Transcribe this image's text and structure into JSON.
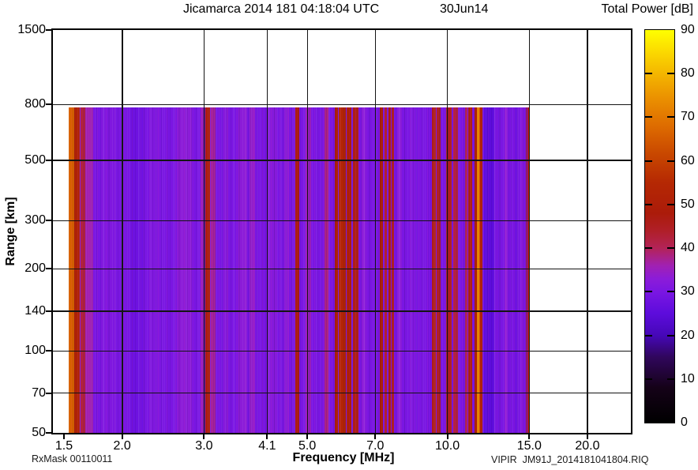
{
  "header": {
    "title_main": "Jicamarca 2014 181 04:18:04 UTC",
    "title_date": "30Jun14",
    "colorbar_title": "Total Power [dB]"
  },
  "footer": {
    "rx_mask": "RxMask 00110011",
    "file_id": "VIPIR  JM91J_2014181041804.RIQ"
  },
  "chart_data": {
    "type": "heatmap",
    "title": "Jicamarca 2014 181 04:18:04 UTC  30Jun14",
    "xlabel": "Frequency [MHz]",
    "ylabel": "Range [km]",
    "x_scale": "log",
    "y_scale": "log",
    "xlim": [
      1.42,
      24.8
    ],
    "ylim": [
      50,
      1500
    ],
    "x_ticks": [
      1.5,
      2.0,
      3.0,
      4.1,
      5.0,
      7.0,
      10.0,
      15.0,
      20.0
    ],
    "x_tick_labels": [
      "1.5",
      "2.0",
      "3.0",
      "4.1",
      "5.0",
      "7.0",
      "10.0",
      "15.0",
      "20.0"
    ],
    "y_ticks": [
      50,
      70,
      100,
      140,
      200,
      300,
      500,
      800,
      1500
    ],
    "y_tick_labels": [
      "50",
      "70",
      "100",
      "140",
      "200",
      "300",
      "500",
      "800",
      "1500"
    ],
    "grid": {
      "on": true,
      "x_lines": [
        2.0,
        3.0,
        4.1,
        5.0,
        7.0,
        10.0,
        15.0,
        20.0
      ],
      "y_lines": [
        70,
        100,
        140,
        200,
        300,
        500,
        800
      ]
    },
    "data_extent": {
      "f_min": 1.535,
      "f_max": 15.0,
      "range_min_km": 50,
      "range_max_km": 780
    },
    "background_db": 30,
    "colorbar": {
      "title": "Total Power [dB]",
      "min": 0,
      "max": 90,
      "ticks": [
        0,
        10,
        20,
        30,
        40,
        50,
        60,
        70,
        80,
        90
      ],
      "tick_labels": [
        "0",
        "10",
        "20",
        "30",
        "40",
        "50",
        "60",
        "70",
        "80",
        "90"
      ],
      "stops": [
        {
          "db": 0,
          "color": "#000000"
        },
        {
          "db": 8,
          "color": "#150218"
        },
        {
          "db": 15,
          "color": "#30065c"
        },
        {
          "db": 20,
          "color": "#4607b8"
        },
        {
          "db": 25,
          "color": "#5d0cdc"
        },
        {
          "db": 30,
          "color": "#7a16e2"
        },
        {
          "db": 33,
          "color": "#8c1cd8"
        },
        {
          "db": 36,
          "color": "#a121b2"
        },
        {
          "db": 40,
          "color": "#b32358"
        },
        {
          "db": 44,
          "color": "#b01f28"
        },
        {
          "db": 48,
          "color": "#ab1b0a"
        },
        {
          "db": 55,
          "color": "#b52803"
        },
        {
          "db": 62,
          "color": "#ca4a00"
        },
        {
          "db": 68,
          "color": "#de6c00"
        },
        {
          "db": 74,
          "color": "#ea8e00"
        },
        {
          "db": 80,
          "color": "#f4b600"
        },
        {
          "db": 85,
          "color": "#fbd900"
        },
        {
          "db": 90,
          "color": "#ffff00"
        }
      ]
    },
    "rfi_stripes": [
      {
        "f1": 1.535,
        "f2": 1.575,
        "db": 66
      },
      {
        "f1": 1.575,
        "f2": 1.625,
        "db": 51
      },
      {
        "f1": 1.625,
        "f2": 1.67,
        "db": 42
      },
      {
        "f1": 1.67,
        "f2": 1.735,
        "db": 36
      },
      {
        "f1": 1.8,
        "f2": 1.92,
        "db": 31
      },
      {
        "f1": 2.08,
        "f2": 2.22,
        "db": 28
      },
      {
        "f1": 2.3,
        "f2": 2.42,
        "db": 31
      },
      {
        "f1": 2.62,
        "f2": 2.82,
        "db": 33
      },
      {
        "f1": 2.95,
        "f2": 3.01,
        "db": 35
      },
      {
        "f1": 3.02,
        "f2": 3.09,
        "db": 47
      },
      {
        "f1": 3.1,
        "f2": 3.17,
        "db": 37
      },
      {
        "f1": 3.3,
        "f2": 3.38,
        "db": 32
      },
      {
        "f1": 3.55,
        "f2": 3.72,
        "db": 33
      },
      {
        "f1": 3.76,
        "f2": 3.86,
        "db": 34
      },
      {
        "f1": 4.1,
        "f2": 4.3,
        "db": 32
      },
      {
        "f1": 4.46,
        "f2": 4.56,
        "db": 33
      },
      {
        "f1": 4.72,
        "f2": 4.81,
        "db": 47
      },
      {
        "f1": 4.95,
        "f2": 5.1,
        "db": 35
      },
      {
        "f1": 5.45,
        "f2": 5.56,
        "db": 38
      },
      {
        "f1": 5.72,
        "f2": 5.83,
        "db": 50
      },
      {
        "f1": 5.85,
        "f2": 6.06,
        "db": 53
      },
      {
        "f1": 6.08,
        "f2": 6.21,
        "db": 49
      },
      {
        "f1": 6.28,
        "f2": 6.43,
        "db": 46
      },
      {
        "f1": 6.55,
        "f2": 6.66,
        "db": 33
      },
      {
        "f1": 7.15,
        "f2": 7.28,
        "db": 48
      },
      {
        "f1": 7.33,
        "f2": 7.41,
        "db": 43
      },
      {
        "f1": 7.47,
        "f2": 7.56,
        "db": 48
      },
      {
        "f1": 7.6,
        "f2": 7.69,
        "db": 45
      },
      {
        "f1": 7.8,
        "f2": 7.96,
        "db": 33
      },
      {
        "f1": 8.3,
        "f2": 8.52,
        "db": 31
      },
      {
        "f1": 9.28,
        "f2": 9.43,
        "db": 46
      },
      {
        "f1": 9.5,
        "f2": 9.69,
        "db": 44
      },
      {
        "f1": 9.95,
        "f2": 10.2,
        "db": 45
      },
      {
        "f1": 10.3,
        "f2": 10.56,
        "db": 42
      },
      {
        "f1": 10.9,
        "f2": 11.06,
        "db": 40
      },
      {
        "f1": 11.1,
        "f2": 11.3,
        "db": 48
      },
      {
        "f1": 11.44,
        "f2": 11.56,
        "db": 52
      },
      {
        "f1": 11.56,
        "f2": 11.78,
        "db": 66
      },
      {
        "f1": 11.6,
        "f2": 11.67,
        "db": 78
      },
      {
        "f1": 11.78,
        "f2": 11.89,
        "db": 50
      },
      {
        "f1": 12.0,
        "f2": 12.62,
        "db": 25
      },
      {
        "f1": 12.7,
        "f2": 12.92,
        "db": 29
      },
      {
        "f1": 13.25,
        "f2": 13.46,
        "db": 33
      },
      {
        "f1": 13.9,
        "f2": 14.12,
        "db": 28
      },
      {
        "f1": 14.35,
        "f2": 14.52,
        "db": 32
      },
      {
        "f1": 14.74,
        "f2": 14.82,
        "db": 46
      },
      {
        "f1": 14.88,
        "f2": 14.99,
        "db": 47
      }
    ]
  }
}
